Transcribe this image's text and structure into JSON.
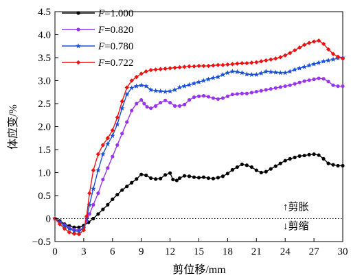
{
  "chart_data": {
    "type": "line",
    "xlabel": "剪位移/mm",
    "ylabel": "体应变/%",
    "xlim": [
      0,
      30
    ],
    "ylim": [
      -0.5,
      4.5
    ],
    "xticks": [
      "0",
      "3",
      "6",
      "9",
      "12",
      "15",
      "18",
      "21",
      "24",
      "27",
      "30"
    ],
    "yticks": [
      "−0.5",
      "0",
      "0.5",
      "1.0",
      "1.5",
      "2.0",
      "2.5",
      "3.0",
      "3.5",
      "4.0",
      "4.5"
    ],
    "grid": false,
    "legend_position": "top-left",
    "annotations": {
      "upper": "↑剪胀",
      "lower": "↓剪缩"
    },
    "series": [
      {
        "name_var": "F",
        "name_value": "=1.000",
        "color": "#000000",
        "marker": "circle",
        "points": [
          [
            0,
            0
          ],
          [
            0.5,
            -0.05
          ],
          [
            1,
            -0.12
          ],
          [
            1.5,
            -0.16
          ],
          [
            2,
            -0.19
          ],
          [
            2.5,
            -0.19
          ],
          [
            3,
            -0.15
          ],
          [
            3.5,
            -0.08
          ],
          [
            4,
            0
          ],
          [
            4.5,
            0.1
          ],
          [
            5,
            0.2
          ],
          [
            5.5,
            0.3
          ],
          [
            6,
            0.42
          ],
          [
            6.5,
            0.52
          ],
          [
            7,
            0.62
          ],
          [
            7.5,
            0.7
          ],
          [
            8,
            0.78
          ],
          [
            8.5,
            0.86
          ],
          [
            9,
            0.96
          ],
          [
            9.5,
            0.94
          ],
          [
            10,
            0.88
          ],
          [
            10.5,
            0.86
          ],
          [
            11,
            0.87
          ],
          [
            11.5,
            0.95
          ],
          [
            12,
            0.99
          ],
          [
            12.3,
            0.85
          ],
          [
            12.7,
            0.83
          ],
          [
            13,
            0.88
          ],
          [
            13.5,
            0.93
          ],
          [
            14,
            0.92
          ],
          [
            14.5,
            0.9
          ],
          [
            15,
            0.89
          ],
          [
            15.5,
            0.9
          ],
          [
            16,
            0.88
          ],
          [
            16.5,
            0.87
          ],
          [
            17,
            0.89
          ],
          [
            17.5,
            0.92
          ],
          [
            18,
            0.98
          ],
          [
            18.5,
            1.06
          ],
          [
            19,
            1.12
          ],
          [
            19.5,
            1.18
          ],
          [
            20,
            1.16
          ],
          [
            20.5,
            1.12
          ],
          [
            21,
            1.05
          ],
          [
            21.5,
            1.0
          ],
          [
            22,
            1.02
          ],
          [
            22.5,
            1.08
          ],
          [
            23,
            1.14
          ],
          [
            23.5,
            1.2
          ],
          [
            24,
            1.26
          ],
          [
            24.5,
            1.3
          ],
          [
            25,
            1.33
          ],
          [
            25.5,
            1.36
          ],
          [
            26,
            1.37
          ],
          [
            26.5,
            1.39
          ],
          [
            27,
            1.4
          ],
          [
            27.5,
            1.38
          ],
          [
            28,
            1.3
          ],
          [
            28.5,
            1.2
          ],
          [
            29,
            1.17
          ],
          [
            29.5,
            1.15
          ],
          [
            30,
            1.15
          ]
        ]
      },
      {
        "name_var": "F",
        "name_value": "=0.820",
        "color": "#9933ee",
        "marker": "circle",
        "points": [
          [
            0,
            0
          ],
          [
            0.5,
            -0.08
          ],
          [
            1,
            -0.14
          ],
          [
            1.5,
            -0.2
          ],
          [
            2,
            -0.24
          ],
          [
            2.5,
            -0.25
          ],
          [
            3,
            -0.2
          ],
          [
            3.3,
            -0.05
          ],
          [
            3.6,
            0.1
          ],
          [
            4,
            0.3
          ],
          [
            4.5,
            0.55
          ],
          [
            5,
            0.85
          ],
          [
            5.5,
            1.1
          ],
          [
            6,
            1.35
          ],
          [
            6.5,
            1.6
          ],
          [
            7,
            1.85
          ],
          [
            7.5,
            2.1
          ],
          [
            8,
            2.35
          ],
          [
            8.5,
            2.5
          ],
          [
            9,
            2.58
          ],
          [
            9.3,
            2.5
          ],
          [
            9.6,
            2.43
          ],
          [
            10,
            2.4
          ],
          [
            10.5,
            2.45
          ],
          [
            11,
            2.52
          ],
          [
            11.5,
            2.57
          ],
          [
            12,
            2.52
          ],
          [
            12.5,
            2.45
          ],
          [
            13,
            2.45
          ],
          [
            13.5,
            2.48
          ],
          [
            14,
            2.58
          ],
          [
            14.5,
            2.64
          ],
          [
            15,
            2.66
          ],
          [
            15.5,
            2.67
          ],
          [
            16,
            2.65
          ],
          [
            16.5,
            2.62
          ],
          [
            17,
            2.6
          ],
          [
            17.5,
            2.62
          ],
          [
            18,
            2.66
          ],
          [
            18.5,
            2.7
          ],
          [
            19,
            2.71
          ],
          [
            19.5,
            2.72
          ],
          [
            20,
            2.72
          ],
          [
            20.5,
            2.74
          ],
          [
            21,
            2.76
          ],
          [
            21.5,
            2.78
          ],
          [
            22,
            2.8
          ],
          [
            22.5,
            2.82
          ],
          [
            23,
            2.84
          ],
          [
            23.5,
            2.86
          ],
          [
            24,
            2.88
          ],
          [
            24.5,
            2.9
          ],
          [
            25,
            2.93
          ],
          [
            25.5,
            2.96
          ],
          [
            26,
            2.99
          ],
          [
            26.5,
            3.01
          ],
          [
            27,
            3.03
          ],
          [
            27.5,
            3.05
          ],
          [
            28,
            3.04
          ],
          [
            28.5,
            2.98
          ],
          [
            29,
            2.9
          ],
          [
            29.5,
            2.88
          ],
          [
            30,
            2.88
          ]
        ]
      },
      {
        "name_var": "F",
        "name_value": "=0.780",
        "color": "#1a4fd6",
        "marker": "star",
        "points": [
          [
            0,
            0
          ],
          [
            0.5,
            -0.08
          ],
          [
            1,
            -0.16
          ],
          [
            1.5,
            -0.22
          ],
          [
            2,
            -0.27
          ],
          [
            2.5,
            -0.28
          ],
          [
            3,
            -0.2
          ],
          [
            3.3,
            0
          ],
          [
            3.6,
            0.3
          ],
          [
            4,
            0.65
          ],
          [
            4.5,
            1.05
          ],
          [
            5,
            1.4
          ],
          [
            5.5,
            1.62
          ],
          [
            6,
            1.8
          ],
          [
            6.5,
            2.05
          ],
          [
            7,
            2.4
          ],
          [
            7.5,
            2.7
          ],
          [
            8,
            2.84
          ],
          [
            8.5,
            2.88
          ],
          [
            9,
            2.9
          ],
          [
            9.5,
            2.88
          ],
          [
            10,
            2.8
          ],
          [
            10.5,
            2.78
          ],
          [
            11,
            2.77
          ],
          [
            11.5,
            2.76
          ],
          [
            12,
            2.77
          ],
          [
            12.5,
            2.8
          ],
          [
            13,
            2.85
          ],
          [
            13.5,
            2.88
          ],
          [
            14,
            2.91
          ],
          [
            14.5,
            2.94
          ],
          [
            15,
            2.97
          ],
          [
            15.5,
            3.0
          ],
          [
            16,
            3.03
          ],
          [
            16.5,
            3.06
          ],
          [
            17,
            3.08
          ],
          [
            17.5,
            3.13
          ],
          [
            18,
            3.17
          ],
          [
            18.5,
            3.2
          ],
          [
            19,
            3.19
          ],
          [
            19.5,
            3.17
          ],
          [
            20,
            3.14
          ],
          [
            20.5,
            3.13
          ],
          [
            21,
            3.13
          ],
          [
            21.5,
            3.16
          ],
          [
            22,
            3.2
          ],
          [
            22.5,
            3.19
          ],
          [
            23,
            3.18
          ],
          [
            23.5,
            3.17
          ],
          [
            24,
            3.17
          ],
          [
            24.5,
            3.2
          ],
          [
            25,
            3.24
          ],
          [
            25.5,
            3.27
          ],
          [
            26,
            3.3
          ],
          [
            26.5,
            3.33
          ],
          [
            27,
            3.36
          ],
          [
            27.5,
            3.39
          ],
          [
            28,
            3.42
          ],
          [
            28.5,
            3.44
          ],
          [
            29,
            3.46
          ],
          [
            29.5,
            3.49
          ],
          [
            30,
            3.5
          ]
        ]
      },
      {
        "name_var": "F",
        "name_value": "=0.722",
        "color": "#ee1111",
        "marker": "diamond",
        "points": [
          [
            0,
            0
          ],
          [
            0.5,
            -0.12
          ],
          [
            1,
            -0.22
          ],
          [
            1.5,
            -0.3
          ],
          [
            2,
            -0.33
          ],
          [
            2.5,
            -0.34
          ],
          [
            3,
            -0.25
          ],
          [
            3.3,
            0.05
          ],
          [
            3.6,
            0.55
          ],
          [
            4,
            1.05
          ],
          [
            4.5,
            1.4
          ],
          [
            5,
            1.6
          ],
          [
            5.5,
            1.75
          ],
          [
            6,
            1.92
          ],
          [
            6.5,
            2.2
          ],
          [
            7,
            2.55
          ],
          [
            7.5,
            2.85
          ],
          [
            8,
            3.0
          ],
          [
            8.5,
            3.08
          ],
          [
            9,
            3.15
          ],
          [
            9.5,
            3.2
          ],
          [
            10,
            3.23
          ],
          [
            10.5,
            3.24
          ],
          [
            11,
            3.25
          ],
          [
            11.5,
            3.26
          ],
          [
            12,
            3.27
          ],
          [
            12.5,
            3.28
          ],
          [
            13,
            3.29
          ],
          [
            13.5,
            3.3
          ],
          [
            14,
            3.31
          ],
          [
            14.5,
            3.31
          ],
          [
            15,
            3.32
          ],
          [
            15.5,
            3.32
          ],
          [
            16,
            3.32
          ],
          [
            16.5,
            3.33
          ],
          [
            17,
            3.34
          ],
          [
            17.5,
            3.34
          ],
          [
            18,
            3.35
          ],
          [
            18.5,
            3.36
          ],
          [
            19,
            3.37
          ],
          [
            19.5,
            3.38
          ],
          [
            20,
            3.38
          ],
          [
            20.5,
            3.39
          ],
          [
            21,
            3.4
          ],
          [
            21.5,
            3.42
          ],
          [
            22,
            3.44
          ],
          [
            22.5,
            3.46
          ],
          [
            23,
            3.48
          ],
          [
            23.5,
            3.51
          ],
          [
            24,
            3.55
          ],
          [
            24.5,
            3.6
          ],
          [
            25,
            3.66
          ],
          [
            25.5,
            3.72
          ],
          [
            26,
            3.78
          ],
          [
            26.5,
            3.82
          ],
          [
            27,
            3.85
          ],
          [
            27.5,
            3.87
          ],
          [
            28,
            3.8
          ],
          [
            28.5,
            3.68
          ],
          [
            29,
            3.58
          ],
          [
            29.5,
            3.52
          ],
          [
            30,
            3.48
          ]
        ]
      }
    ]
  }
}
